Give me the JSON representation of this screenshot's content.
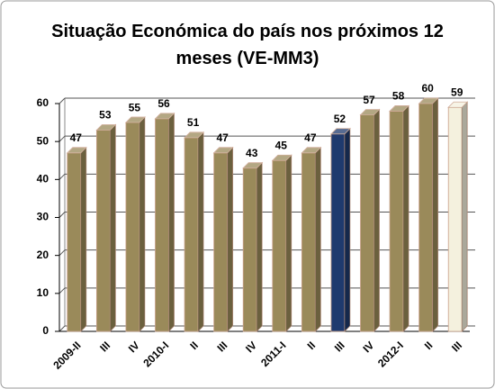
{
  "chart_data": {
    "type": "bar3d",
    "title": "Situação Económica do país nos próximos 12 meses (VE-MM3)",
    "categories": [
      "2009-II",
      "III",
      "IV",
      "2010-I",
      "II",
      "III",
      "IV",
      "2011-I",
      "II",
      "III",
      "IV",
      "2012-I",
      "II",
      "III"
    ],
    "values": [
      47,
      53,
      55,
      56,
      51,
      47,
      43,
      45,
      47,
      52,
      57,
      58,
      60,
      59
    ],
    "colors": [
      "#9a8a5a",
      "#9a8a5a",
      "#9a8a5a",
      "#9a8a5a",
      "#9a8a5a",
      "#9a8a5a",
      "#9a8a5a",
      "#9a8a5a",
      "#9a8a5a",
      "#1f3a6e",
      "#9a8a5a",
      "#9a8a5a",
      "#9a8a5a",
      "#f4f1de"
    ],
    "ylim": [
      0,
      60
    ],
    "yticks": [
      0,
      10,
      20,
      30,
      40,
      50,
      60
    ],
    "grid": true
  }
}
